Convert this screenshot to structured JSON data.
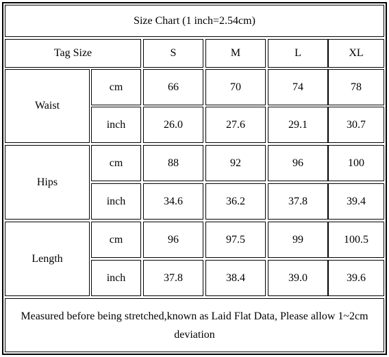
{
  "title": "Size Chart (1 inch=2.54cm)",
  "header": {
    "label": "Tag Size",
    "sizes": [
      "S",
      "M",
      "L",
      "XL"
    ]
  },
  "rows": [
    {
      "measure": "Waist",
      "lines": [
        {
          "unit": "cm",
          "values": [
            "66",
            "70",
            "74",
            "78"
          ]
        },
        {
          "unit": "inch",
          "values": [
            "26.0",
            "27.6",
            "29.1",
            "30.7"
          ]
        }
      ]
    },
    {
      "measure": "Hips",
      "lines": [
        {
          "unit": "cm",
          "values": [
            "88",
            "92",
            "96",
            "100"
          ]
        },
        {
          "unit": "inch",
          "values": [
            "34.6",
            "36.2",
            "37.8",
            "39.4"
          ]
        }
      ]
    },
    {
      "measure": "Length",
      "lines": [
        {
          "unit": "cm",
          "values": [
            "96",
            "97.5",
            "99",
            "100.5"
          ]
        },
        {
          "unit": "inch",
          "values": [
            "37.8",
            "38.4",
            "39.0",
            "39.6"
          ]
        }
      ]
    }
  ],
  "note": "Measured before being stretched,known as Laid Flat Data, Please allow 1~2cm deviation"
}
